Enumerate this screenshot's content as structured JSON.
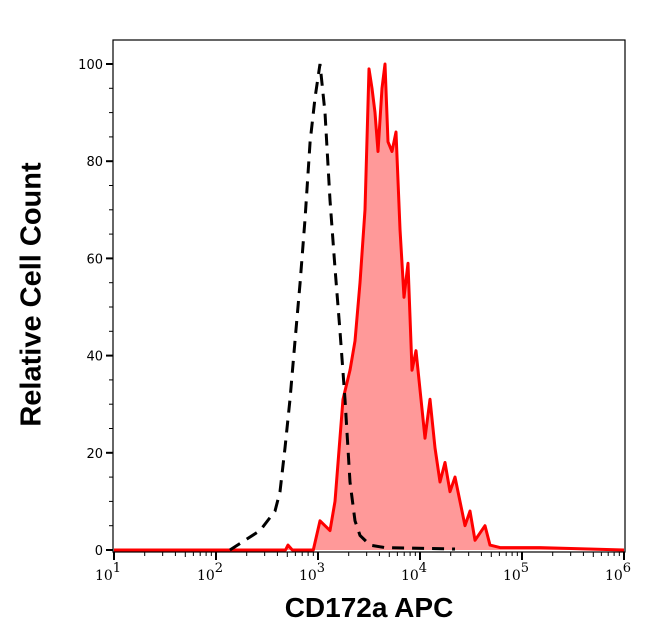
{
  "chart_data": {
    "type": "area",
    "xlabel": "CD172a APC",
    "ylabel": "Relative Cell Count",
    "xscale": "log",
    "xlim": [
      10,
      1000000
    ],
    "ylim": [
      0,
      105
    ],
    "grid": false,
    "x_tick_labels": [
      {
        "base": "10",
        "exp": "1",
        "value": 10
      },
      {
        "base": "10",
        "exp": "2",
        "value": 100
      },
      {
        "base": "10",
        "exp": "3",
        "value": 1000
      },
      {
        "base": "10",
        "exp": "4",
        "value": 10000
      },
      {
        "base": "10",
        "exp": "5",
        "value": 100000
      },
      {
        "base": "10",
        "exp": "6",
        "value": 1000000
      }
    ],
    "y_ticks": [
      0,
      20,
      40,
      60,
      80,
      100
    ],
    "series": [
      {
        "style": "red solid line with light red fill",
        "color": "#ff0000",
        "fill": "#ff9999",
        "x": [
          10,
          480,
          508,
          560,
          900,
          1047,
          1312,
          1469,
          1760,
          2060,
          2306,
          2583,
          2892,
          3162,
          3383,
          3620,
          3874,
          4238,
          4536,
          4853,
          5309,
          5817,
          6368,
          6966,
          7621,
          8356,
          9141,
          10000,
          11194,
          12531,
          14028,
          15704,
          17579,
          19679,
          22029,
          24660,
          27606,
          30903,
          34594,
          43351,
          48529,
          60813,
          150000,
          1000000
        ],
        "y": [
          0,
          0,
          1,
          0,
          0,
          6,
          4,
          10,
          31,
          37,
          43,
          55,
          70,
          99,
          95,
          90,
          82,
          95,
          100,
          84,
          82,
          86,
          66,
          52,
          59,
          37,
          41,
          33,
          23,
          31,
          21,
          14,
          18,
          12,
          15,
          10,
          5,
          8,
          2,
          5,
          1,
          0.5,
          0.5,
          0
        ]
      },
      {
        "style": "black dashed line",
        "color": "#000000",
        "x": [
          137,
          270,
          379,
          424,
          475,
          531,
          595,
          667,
          746,
          836,
          935,
          1047,
          1172,
          1312,
          1469,
          1644,
          1841,
          2060,
          2306,
          2583,
          3236,
          4536,
          22029
        ],
        "y": [
          0,
          4,
          8,
          12,
          21,
          31,
          43,
          55,
          68,
          84,
          93,
          100,
          90,
          72,
          58,
          45,
          31,
          14,
          6,
          3,
          1,
          0.5,
          0.2
        ]
      }
    ]
  }
}
